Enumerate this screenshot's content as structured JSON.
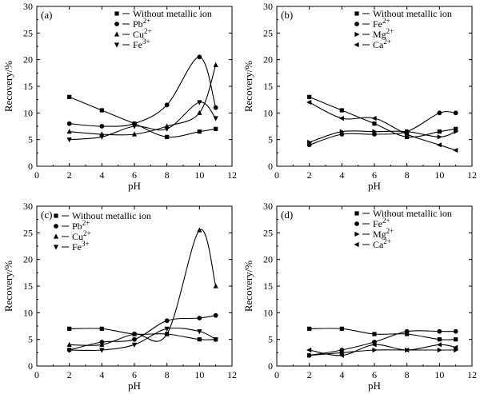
{
  "chart_data": [
    {
      "type": "line",
      "panel_label": "(a)",
      "xlabel": "pH",
      "ylabel": "Recovery/%",
      "xlim": [
        0,
        12
      ],
      "ylim": [
        0,
        30
      ],
      "x_ticks": [
        "0",
        "2",
        "4",
        "6",
        "8",
        "10",
        "12"
      ],
      "y_ticks": [
        "0",
        "5",
        "10",
        "15",
        "20",
        "25",
        "30"
      ],
      "legend_position": "top-right",
      "x": [
        2,
        4,
        6,
        8,
        10,
        11
      ],
      "series": [
        {
          "name": "Without metallic ion",
          "ion": "",
          "marker": "square",
          "values": [
            13,
            10.5,
            8,
            5.5,
            6.5,
            7
          ]
        },
        {
          "name": "Pb",
          "ion": "2+",
          "marker": "circle",
          "values": [
            8,
            7.5,
            8,
            11.5,
            20.5,
            11
          ]
        },
        {
          "name": "Cu",
          "ion": "2+",
          "marker": "triangle-up",
          "values": [
            6.5,
            6,
            6,
            7.5,
            10,
            19
          ]
        },
        {
          "name": "Fe",
          "ion": "3+",
          "marker": "triangle-down",
          "values": [
            5,
            5.5,
            7.5,
            7,
            12,
            9
          ]
        }
      ]
    },
    {
      "type": "line",
      "panel_label": "(b)",
      "xlabel": "pH",
      "ylabel": "Recovery/%",
      "xlim": [
        0,
        12
      ],
      "ylim": [
        0,
        30
      ],
      "x_ticks": [
        "0",
        "2",
        "4",
        "6",
        "8",
        "10",
        "12"
      ],
      "y_ticks": [
        "0",
        "5",
        "10",
        "15",
        "20",
        "25",
        "30"
      ],
      "legend_position": "top-right",
      "x": [
        2,
        4,
        6,
        8,
        10,
        11
      ],
      "series": [
        {
          "name": "Without metallic ion",
          "ion": "",
          "marker": "square",
          "values": [
            13,
            10.5,
            8,
            5.5,
            6.5,
            7
          ]
        },
        {
          "name": "Fe",
          "ion": "2+",
          "marker": "circle",
          "values": [
            4,
            6,
            6,
            6.5,
            10,
            10
          ]
        },
        {
          "name": "Mg",
          "ion": "2+",
          "marker": "triangle-right",
          "values": [
            4.5,
            6.5,
            6.5,
            6.5,
            5.5,
            6.5
          ]
        },
        {
          "name": "Ca",
          "ion": "2+",
          "marker": "triangle-left",
          "values": [
            12,
            9,
            9,
            6,
            4,
            3
          ]
        }
      ]
    },
    {
      "type": "line",
      "panel_label": "(c)",
      "xlabel": "pH",
      "ylabel": "Recovery/%",
      "xlim": [
        0,
        12
      ],
      "ylim": [
        0,
        30
      ],
      "x_ticks": [
        "0",
        "2",
        "4",
        "6",
        "8",
        "10",
        "12"
      ],
      "y_ticks": [
        "0",
        "5",
        "10",
        "15",
        "20",
        "25",
        "30"
      ],
      "legend_position": "top-left",
      "x": [
        2,
        4,
        6,
        8,
        10,
        11
      ],
      "series": [
        {
          "name": "Without metallic ion",
          "ion": "",
          "marker": "square",
          "values": [
            7,
            7,
            6,
            6,
            5,
            5
          ]
        },
        {
          "name": "Pb",
          "ion": "2+",
          "marker": "circle",
          "values": [
            3,
            4.5,
            5,
            8.5,
            9,
            9.5
          ]
        },
        {
          "name": "Cu",
          "ion": "2+",
          "marker": "triangle-up",
          "values": [
            4,
            4,
            6,
            6,
            25.5,
            15
          ]
        },
        {
          "name": "Fe",
          "ion": "3+",
          "marker": "triangle-down",
          "values": [
            3,
            3,
            4,
            7,
            6.5,
            5
          ]
        }
      ]
    },
    {
      "type": "line",
      "panel_label": "(d)",
      "xlabel": "pH",
      "ylabel": "Recovery/%",
      "xlim": [
        0,
        12
      ],
      "ylim": [
        0,
        30
      ],
      "x_ticks": [
        "0",
        "2",
        "4",
        "6",
        "8",
        "10",
        "12"
      ],
      "y_ticks": [
        "0",
        "5",
        "10",
        "15",
        "20",
        "25",
        "30"
      ],
      "legend_position": "top-right",
      "x": [
        2,
        4,
        6,
        8,
        10,
        11
      ],
      "series": [
        {
          "name": "Without metallic ion",
          "ion": "",
          "marker": "square",
          "values": [
            7,
            7,
            6,
            6,
            5,
            5
          ]
        },
        {
          "name": "Fe",
          "ion": "2+",
          "marker": "circle",
          "values": [
            2,
            3,
            4.5,
            6.5,
            6.5,
            6.5
          ]
        },
        {
          "name": "Mg",
          "ion": "2+",
          "marker": "triangle-right",
          "values": [
            2,
            2.5,
            3,
            3,
            3,
            3
          ]
        },
        {
          "name": "Ca",
          "ion": "2+",
          "marker": "triangle-left",
          "values": [
            3,
            2,
            4,
            3,
            4,
            3.5
          ]
        }
      ]
    }
  ]
}
